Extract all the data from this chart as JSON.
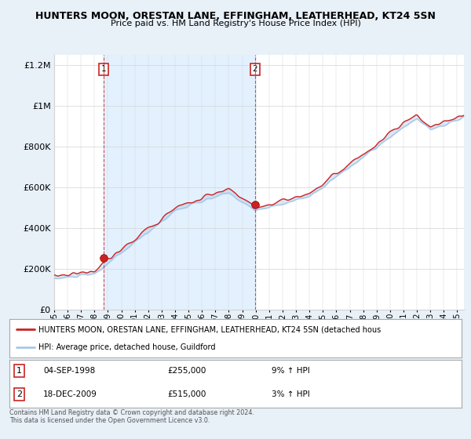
{
  "title": "HUNTERS MOON, ORESTAN LANE, EFFINGHAM, LEATHERHEAD, KT24 5SN",
  "subtitle": "Price paid vs. HM Land Registry's House Price Index (HPI)",
  "legend_line1": "HUNTERS MOON, ORESTAN LANE, EFFINGHAM, LEATHERHEAD, KT24 5SN (detached hous",
  "legend_line2": "HPI: Average price, detached house, Guildford",
  "annotation1_label": "1",
  "annotation1_date": "04-SEP-1998",
  "annotation1_price": "£255,000",
  "annotation1_hpi": "9% ↑ HPI",
  "annotation2_label": "2",
  "annotation2_date": "18-DEC-2009",
  "annotation2_price": "£515,000",
  "annotation2_hpi": "3% ↑ HPI",
  "footnote": "Contains HM Land Registry data © Crown copyright and database right 2024.\nThis data is licensed under the Open Government Licence v3.0.",
  "purchase1_x": 1998.67,
  "purchase1_price": 255000,
  "purchase2_x": 2009.96,
  "purchase2_price": 515000,
  "hpi_color": "#a8c8e8",
  "price_color": "#cc2222",
  "vline_color": "#cc2222",
  "bg_color": "#e8f0f8",
  "plot_bg": "#ffffff",
  "fill_between_color": "#c8dff0",
  "shade_color": "#ddeeff",
  "ylim": [
    0,
    1250000
  ],
  "xlim_start": 1995.0,
  "xlim_end": 2025.5,
  "yticks": [
    0,
    200000,
    400000,
    600000,
    800000,
    1000000,
    1200000
  ],
  "ytick_labels": [
    "£0",
    "£200K",
    "£400K",
    "£600K",
    "£800K",
    "£1M",
    "£1.2M"
  ]
}
